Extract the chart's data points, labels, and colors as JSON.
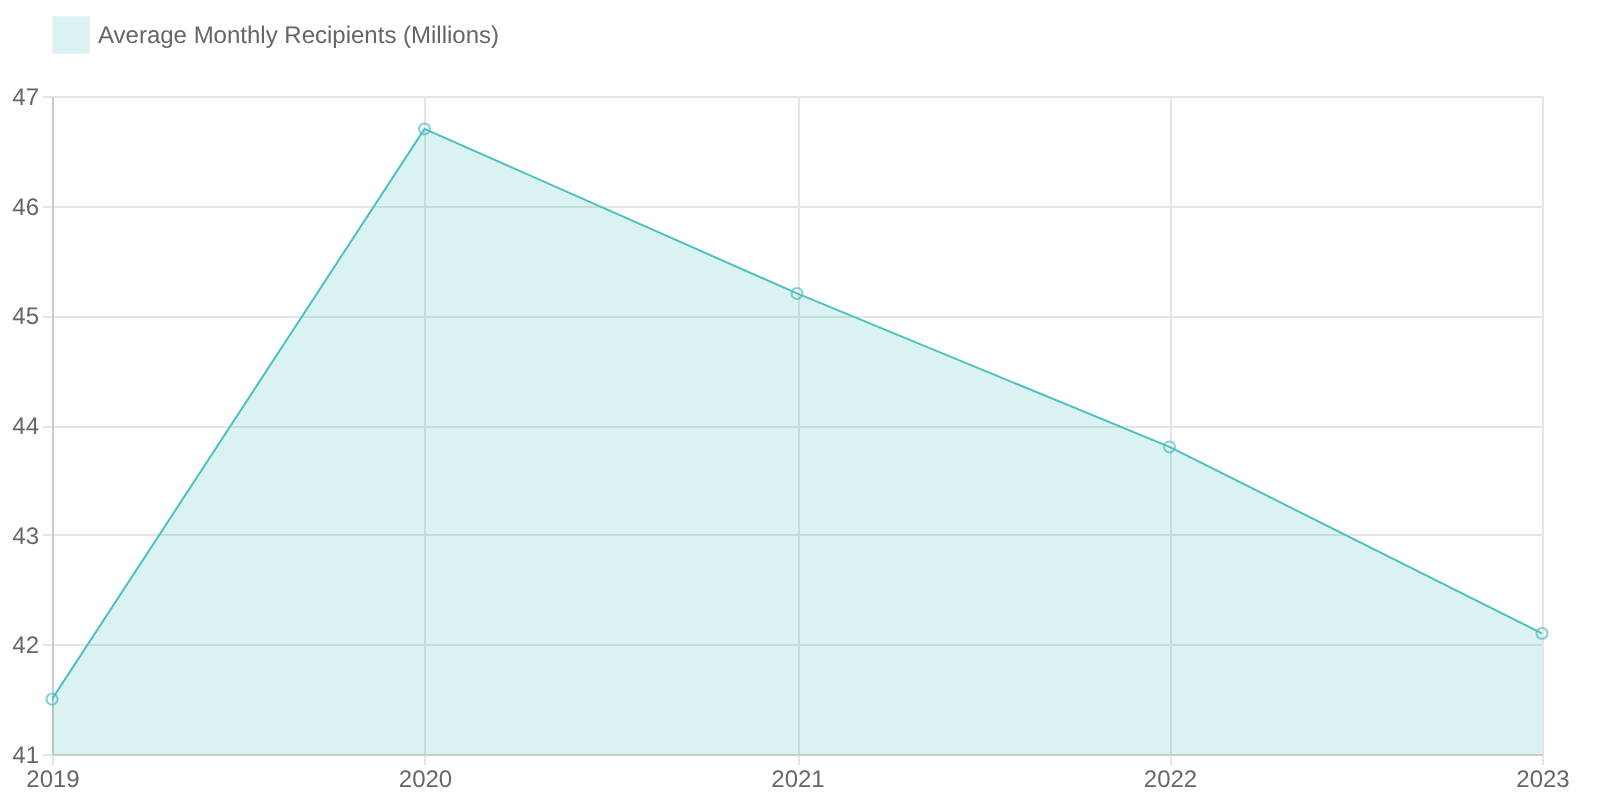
{
  "chart_data": {
    "type": "area",
    "x": [
      2019,
      2020,
      2021,
      2022,
      2023
    ],
    "series": [
      {
        "name": "Average Monthly Recipients (Millions)",
        "color": "#4bc0c0",
        "values": [
          41.5,
          46.7,
          45.2,
          43.8,
          42.1
        ]
      }
    ],
    "xlim": [
      2019,
      2023
    ],
    "xticks": [
      2019,
      2020,
      2021,
      2022,
      2023
    ],
    "ylim": [
      41,
      47
    ],
    "yticks": [
      41,
      42,
      43,
      44,
      45,
      46,
      47
    ],
    "grid": true,
    "legend": "top",
    "marker": "circle",
    "line_style": "solid"
  }
}
